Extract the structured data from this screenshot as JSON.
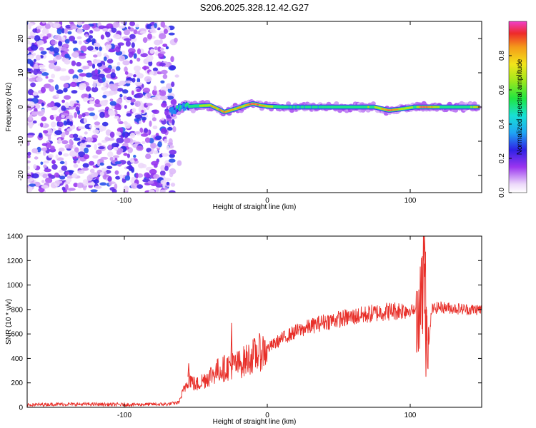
{
  "title": "S206.2025.328.12.42.G27",
  "chart_data": [
    {
      "type": "heatmap",
      "name": "spectrogram",
      "xlabel": "Height of straight line (km)",
      "ylabel": "Frequency (Hz)",
      "xlim": [
        -168,
        150
      ],
      "ylim": [
        -25,
        25
      ],
      "xticks": [
        -100,
        0,
        100
      ],
      "xtick_labels": [
        "-100",
        "0",
        "100"
      ],
      "yticks": [
        -20,
        -10,
        0,
        10,
        20
      ],
      "ytick_labels": [
        "-20",
        "-10",
        "0",
        "10",
        "20"
      ],
      "noise_region_x": [
        -168,
        -65
      ],
      "signal_start_x": -68,
      "signal_trace": {
        "x": [
          -68,
          -60,
          -50,
          -40,
          -30,
          -22,
          -15,
          -10,
          -5,
          0,
          10,
          20,
          40,
          60,
          75,
          85,
          95,
          103,
          110,
          120,
          130,
          140,
          148
        ],
        "freq": [
          -1.5,
          0,
          0.3,
          0.5,
          -1.5,
          -0.5,
          0.5,
          1.0,
          0.5,
          0.2,
          0,
          0,
          0,
          0,
          0,
          -1,
          -0.5,
          0,
          0,
          0,
          0,
          0,
          0
        ],
        "amplitude": [
          0.4,
          0.45,
          0.55,
          0.75,
          0.9,
          0.8,
          0.85,
          0.95,
          0.8,
          0.7,
          0.5,
          0.45,
          0.5,
          0.55,
          0.6,
          0.95,
          0.7,
          0.6,
          0.95,
          0.6,
          0.5,
          0.5,
          0.85
        ]
      },
      "colorbar": {
        "label": "Normalized spectral amplitude",
        "range": [
          0.0,
          1.0
        ],
        "ticks": [
          "0.0",
          "0.2",
          "0.4",
          "0.6",
          "0.8"
        ],
        "tick_values": [
          0.0,
          0.2,
          0.4,
          0.6,
          0.8
        ]
      }
    },
    {
      "type": "line",
      "name": "snr",
      "xlabel": "Height of straight line (km)",
      "ylabel": "SNR (10 * v/v)",
      "xlim": [
        -168,
        150
      ],
      "ylim": [
        0,
        1400
      ],
      "xticks": [
        -100,
        0,
        100
      ],
      "xtick_labels": [
        "-100",
        "0",
        "100"
      ],
      "yticks": [
        0,
        200,
        400,
        600,
        800,
        1000,
        1200,
        1400
      ],
      "ytick_labels": [
        "0",
        "200",
        "400",
        "600",
        "800",
        "1000",
        "1200",
        "1400"
      ],
      "line_color": "#e8302a",
      "series": [
        {
          "name": "SNR",
          "x": [
            -168,
            -150,
            -120,
            -100,
            -80,
            -70,
            -62,
            -58,
            -55,
            -52,
            -50,
            -45,
            -40,
            -35,
            -30,
            -25,
            -20,
            -10,
            0,
            10,
            20,
            30,
            40,
            50,
            60,
            70,
            80,
            90,
            100,
            105,
            108,
            110,
            111,
            112,
            113,
            115,
            120,
            130,
            140,
            150
          ],
          "y": [
            20,
            25,
            25,
            22,
            25,
            25,
            40,
            150,
            250,
            200,
            180,
            220,
            260,
            300,
            320,
            340,
            350,
            420,
            480,
            560,
            620,
            660,
            700,
            720,
            740,
            760,
            780,
            790,
            800,
            780,
            900,
            1200,
            800,
            600,
            500,
            800,
            820,
            810,
            800,
            800
          ]
        }
      ],
      "annotations": [
        {
          "x": -55,
          "y": 360,
          "kind": "spike"
        },
        {
          "x": -25,
          "y": 690,
          "kind": "spike"
        },
        {
          "x": 110,
          "y": 1400,
          "kind": "spike"
        },
        {
          "x": 111,
          "y": 250,
          "kind": "dip"
        }
      ]
    }
  ]
}
